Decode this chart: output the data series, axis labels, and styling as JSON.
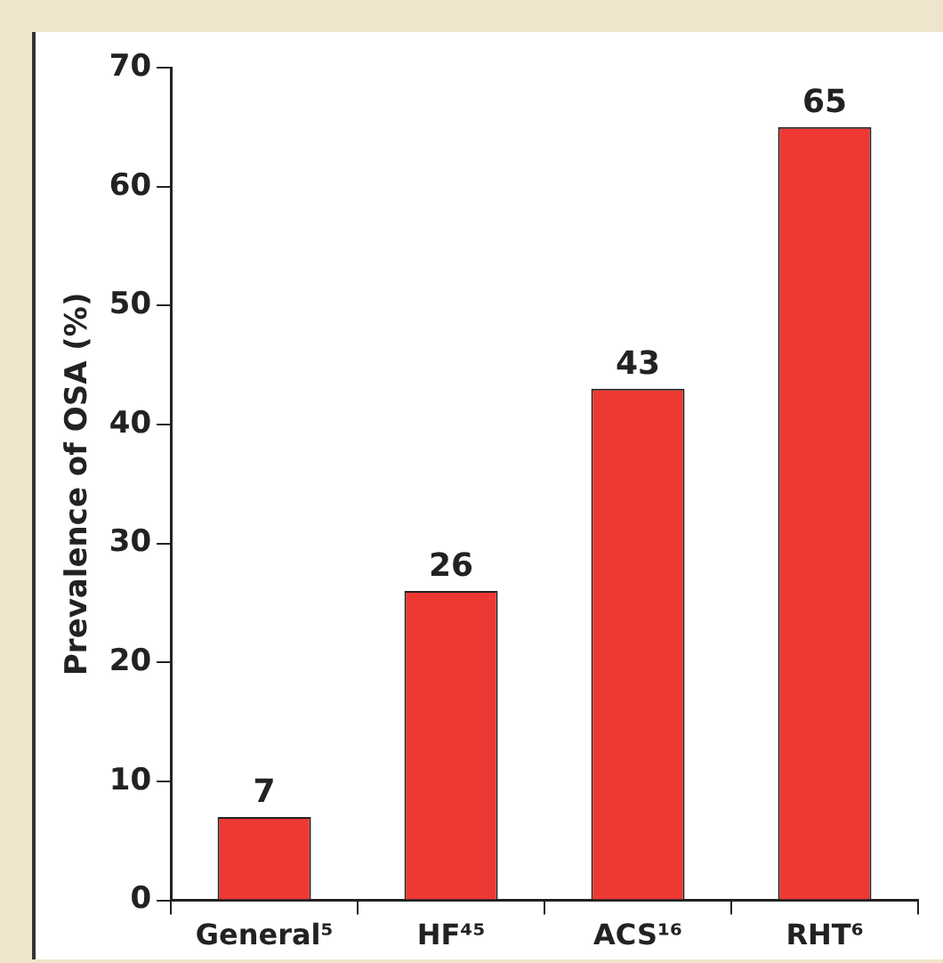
{
  "chart_data": {
    "type": "bar",
    "ylabel": "Prevalence of OSA (%)",
    "categories": [
      "General⁵",
      "HF⁴⁵",
      "ACS¹⁶",
      "RHT⁶"
    ],
    "values": [
      7,
      26,
      43,
      65
    ],
    "color": "#ee3833",
    "ylim": [
      0,
      70
    ],
    "yticks": [
      0,
      10,
      20,
      30,
      40,
      50,
      60,
      70
    ],
    "grid": false,
    "legend": false,
    "data_labels": true
  }
}
